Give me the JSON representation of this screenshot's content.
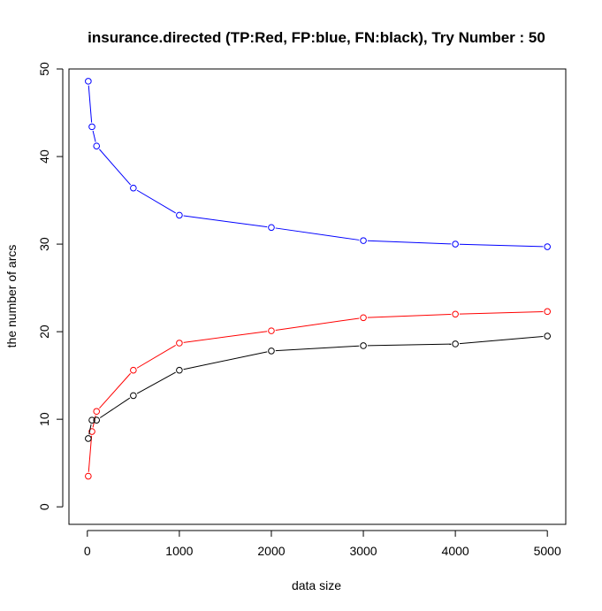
{
  "chart_data": {
    "type": "line",
    "title": "insurance.directed  (TP:Red, FP:blue, FN:black),  Try Number :  50",
    "xlabel": "data size",
    "ylabel": "the number of arcs",
    "xlim": [
      -200,
      5200
    ],
    "ylim": [
      -2,
      50
    ],
    "x_ticks": [
      0,
      1000,
      2000,
      3000,
      4000,
      5000
    ],
    "y_ticks": [
      0,
      10,
      20,
      30,
      40,
      50
    ],
    "x_tick_labels": [
      "0",
      "1000",
      "2000",
      "3000",
      "4000",
      "5000"
    ],
    "y_tick_labels": [
      "0",
      "10",
      "20",
      "30",
      "40",
      "50"
    ],
    "x": [
      10,
      50,
      100,
      500,
      1000,
      2000,
      3000,
      4000,
      5000
    ],
    "series": [
      {
        "key": "fp",
        "color": "#0000ff",
        "values": [
          48.6,
          43.4,
          41.2,
          36.4,
          33.3,
          31.9,
          30.4,
          30.0,
          29.7
        ]
      },
      {
        "key": "tp",
        "color": "#ff0000",
        "values": [
          3.5,
          8.6,
          10.9,
          15.6,
          18.7,
          20.1,
          21.6,
          22.0,
          22.3
        ]
      },
      {
        "key": "fn",
        "color": "#000000",
        "values": [
          7.8,
          9.9,
          9.9,
          12.7,
          15.6,
          17.8,
          18.4,
          18.6,
          19.5
        ]
      }
    ],
    "grid": false,
    "legend": "none"
  }
}
